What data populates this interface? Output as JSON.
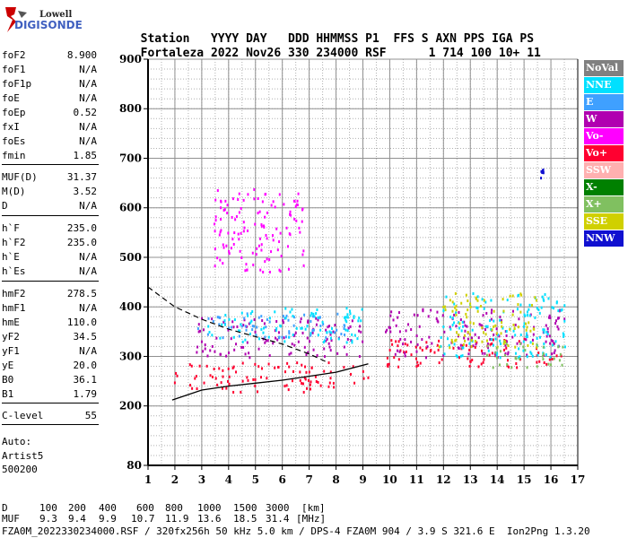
{
  "logo": {
    "line1": "Lowell",
    "line2": "DIGISONDE"
  },
  "header": {
    "labels": [
      "Station",
      "YYYY",
      "DAY",
      "DDD",
      "HHMMSS",
      "P1",
      "FFS",
      "S",
      "AXN",
      "PPS",
      "IGA",
      "PS"
    ],
    "values": [
      "Fortaleza",
      "2022",
      "Nov26",
      "330",
      "234000",
      "RSF",
      "",
      "1",
      "714",
      "100",
      "10+",
      "11"
    ]
  },
  "params": [
    {
      "name": "foF2",
      "value": "8.900"
    },
    {
      "name": "foF1",
      "value": "N/A"
    },
    {
      "name": "foF1p",
      "value": "N/A"
    },
    {
      "name": "foE",
      "value": "N/A"
    },
    {
      "name": "foEp",
      "value": "0.52"
    },
    {
      "name": "fxI",
      "value": "N/A"
    },
    {
      "name": "foEs",
      "value": "N/A"
    },
    {
      "name": "fmin",
      "value": "1.85"
    },
    {
      "name": "MUF(D)",
      "value": "31.37"
    },
    {
      "name": "M(D)",
      "value": "3.52"
    },
    {
      "name": "D",
      "value": "N/A"
    },
    {
      "name": "h`F",
      "value": "235.0"
    },
    {
      "name": "h`F2",
      "value": "235.0"
    },
    {
      "name": "h`E",
      "value": "N/A"
    },
    {
      "name": "h`Es",
      "value": "N/A"
    },
    {
      "name": "hmF2",
      "value": "278.5"
    },
    {
      "name": "hmF1",
      "value": "N/A"
    },
    {
      "name": "hmE",
      "value": "110.0"
    },
    {
      "name": "yF2",
      "value": "34.5"
    },
    {
      "name": "yF1",
      "value": "N/A"
    },
    {
      "name": "yE",
      "value": "20.0"
    },
    {
      "name": "B0",
      "value": "36.1"
    },
    {
      "name": "B1",
      "value": "1.79"
    },
    {
      "name": "C-level",
      "value": "55"
    }
  ],
  "autoscaling": {
    "label": "Auto:",
    "program": "Artist5",
    "version": "500200"
  },
  "legend": [
    {
      "label": "NoVal",
      "color": "#808080"
    },
    {
      "label": "NNE",
      "color": "#00e0ff"
    },
    {
      "label": "E",
      "color": "#3fa0ff"
    },
    {
      "label": "W",
      "color": "#b000b0"
    },
    {
      "label": "Vo-",
      "color": "#ff00ff"
    },
    {
      "label": "Vo+",
      "color": "#ff0030"
    },
    {
      "label": "SSW",
      "color": "#ffb0b0"
    },
    {
      "label": "X-",
      "color": "#008000"
    },
    {
      "label": "X+",
      "color": "#80c060"
    },
    {
      "label": "SSE",
      "color": "#d0d000"
    },
    {
      "label": "NNW",
      "color": "#1010d0"
    }
  ],
  "muf_table": {
    "d_label": "D",
    "d_values": [
      "100",
      "200",
      "400",
      "600",
      "800",
      "1000",
      "1500",
      "3000"
    ],
    "d_unit": "[km]",
    "muf_label": "MUF",
    "muf_values": [
      "9.3",
      "9.4",
      "9.9",
      "10.7",
      "11.9",
      "13.6",
      "18.5",
      "31.4"
    ],
    "muf_unit": "[MHz]"
  },
  "footer": "FZA0M_2022330234000.RSF / 320fx256h 50 kHz 5.0 km / DPS-4 FZA0M 904 / 3.9 S 321.6 E  Ion2Png 1.3.20",
  "chart_data": {
    "type": "scatter",
    "title": "",
    "xlabel": "",
    "ylabel": "",
    "xlim": [
      1,
      17
    ],
    "ylim": [
      80,
      900
    ],
    "x_ticks": [
      1,
      2,
      3,
      4,
      5,
      6,
      7,
      8,
      9,
      10,
      11,
      12,
      13,
      14,
      15,
      16,
      17
    ],
    "y_ticks": [
      80,
      200,
      300,
      400,
      500,
      600,
      700,
      800,
      900
    ],
    "grid": true,
    "echo_clusters": [
      {
        "mode": "Vo+",
        "x_range": [
          1.9,
          9.2
        ],
        "h_range": [
          230,
          290
        ],
        "color": "#ff0030"
      },
      {
        "mode": "W",
        "x_range": [
          2.7,
          9.0
        ],
        "h_range": [
          300,
          380
        ],
        "color": "#b000b0"
      },
      {
        "mode": "E",
        "x_range": [
          2.8,
          8.5
        ],
        "h_range": [
          340,
          390
        ],
        "color": "#3fa0ff"
      },
      {
        "mode": "NNE",
        "x_range": [
          3.2,
          9.0
        ],
        "h_range": [
          330,
          400
        ],
        "color": "#00e0ff"
      },
      {
        "mode": "Vo+",
        "x_range": [
          9.8,
          16.5
        ],
        "h_range": [
          280,
          340
        ],
        "color": "#ff0030"
      },
      {
        "mode": "W",
        "x_range": [
          9.8,
          16.5
        ],
        "h_range": [
          300,
          400
        ],
        "color": "#b000b0"
      },
      {
        "mode": "NNE",
        "x_range": [
          11.8,
          16.5
        ],
        "h_range": [
          300,
          430
        ],
        "color": "#00e0ff"
      },
      {
        "mode": "SSE",
        "x_range": [
          11.8,
          15.5
        ],
        "h_range": [
          320,
          430
        ],
        "color": "#d0d000"
      },
      {
        "mode": "X+",
        "x_range": [
          13.5,
          16.5
        ],
        "h_range": [
          280,
          330
        ],
        "color": "#80c060"
      },
      {
        "mode": "Vo-",
        "x_range": [
          3.4,
          6.8
        ],
        "h_range": [
          470,
          640
        ],
        "color": "#ff00ff"
      },
      {
        "mode": "NNW",
        "x_range": [
          15.6,
          15.7
        ],
        "h_range": [
          660,
          680
        ],
        "color": "#1010d0"
      }
    ],
    "trace_lower": {
      "x": [
        1.9,
        3,
        4,
        5,
        6,
        7,
        8,
        9.2
      ],
      "h": [
        212,
        232,
        240,
        246,
        252,
        260,
        268,
        285
      ]
    },
    "trace_profile_dashed": {
      "x": [
        1,
        2,
        3,
        4,
        5,
        6,
        7,
        7.6
      ],
      "h": [
        440,
        400,
        375,
        355,
        340,
        325,
        305,
        290
      ]
    }
  }
}
